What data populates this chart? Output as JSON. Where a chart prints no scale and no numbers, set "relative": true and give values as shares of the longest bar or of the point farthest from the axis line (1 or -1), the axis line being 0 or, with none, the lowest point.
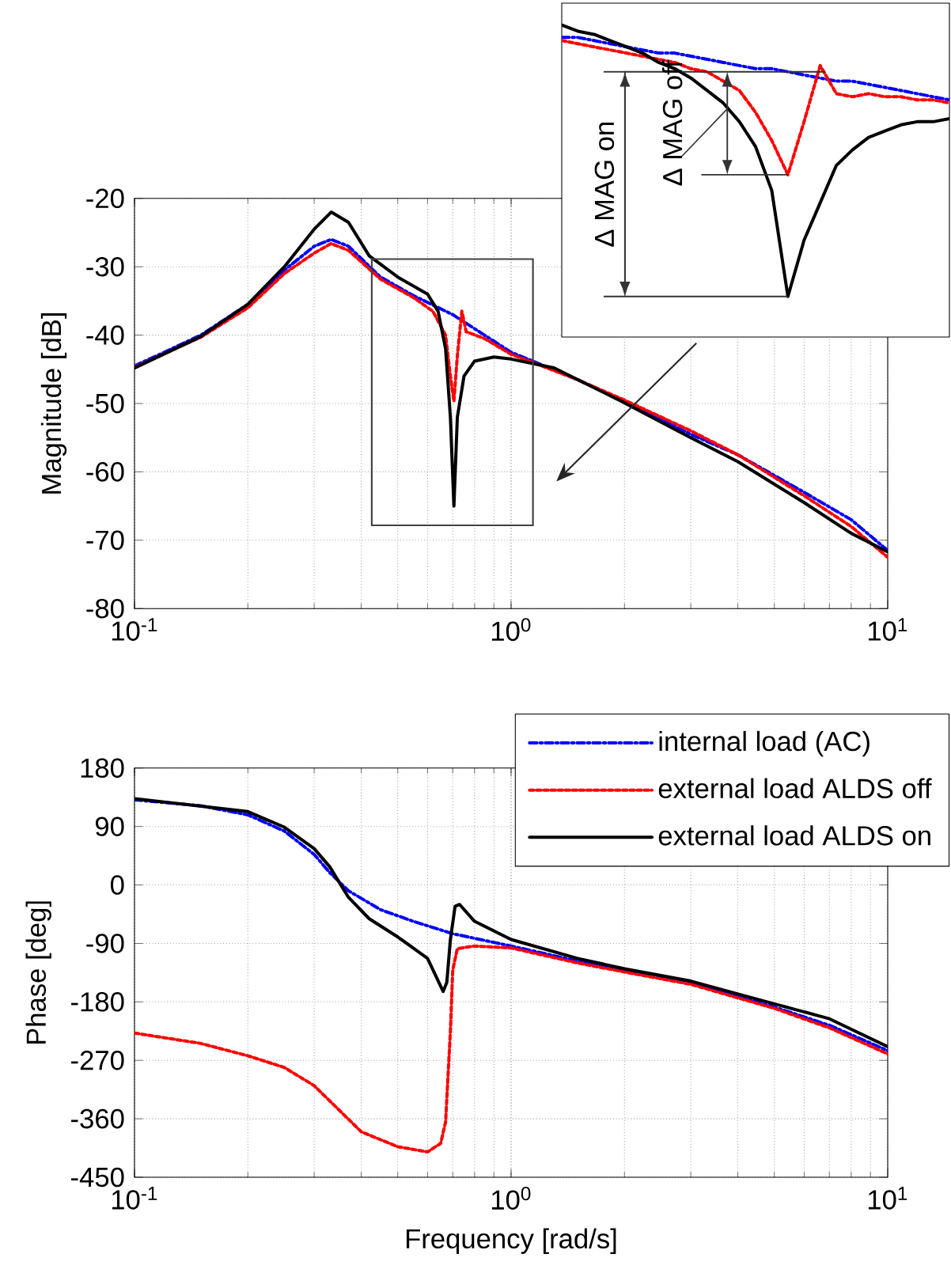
{
  "chart_data": [
    {
      "type": "line",
      "ylabel": "Magnitude [dB]",
      "xlim": [
        0.1,
        10
      ],
      "ylim": [
        -80,
        -20
      ],
      "log": "x",
      "grid": true,
      "xticks": [
        {
          "value": 0.1,
          "label": "10$^{-1}$"
        },
        {
          "value": 1,
          "label": "10$^{0}$"
        },
        {
          "value": 10,
          "label": "10$^{1}$"
        }
      ],
      "yticks": [
        -80,
        -70,
        -60,
        -50,
        -40,
        -30,
        -20
      ],
      "series": [
        {
          "color": "#0000ff",
          "line_style": "dashdot",
          "x": [
            0.1,
            0.12,
            0.15,
            0.2,
            0.25,
            0.3,
            0.333,
            0.37,
            0.45,
            0.55,
            0.7,
            0.85,
            1,
            1.5,
            2,
            3,
            4,
            6,
            8,
            10
          ],
          "values": [
            -44.5,
            -42.5,
            -40,
            -35.5,
            -30.5,
            -27,
            -26,
            -27,
            -31.5,
            -34.2,
            -37,
            -40,
            -42.5,
            -46.5,
            -49.7,
            -54.5,
            -57.5,
            -63,
            -67,
            -71.5
          ]
        },
        {
          "color": "#ff0000",
          "line_style": "dotted",
          "x": [
            0.1,
            0.15,
            0.2,
            0.25,
            0.3,
            0.333,
            0.37,
            0.45,
            0.55,
            0.62,
            0.67,
            0.69,
            0.705,
            0.72,
            0.74,
            0.76,
            0.85,
            1,
            1.5,
            2,
            3,
            4,
            6,
            8,
            10
          ],
          "values": [
            -44.7,
            -40.3,
            -36,
            -31,
            -28,
            -26.6,
            -27.6,
            -31.8,
            -34.5,
            -36.5,
            -40,
            -46,
            -49.7,
            -43,
            -36.5,
            -39.5,
            -40.5,
            -42.8,
            -46.5,
            -49.5,
            -54,
            -57.5,
            -63.5,
            -68,
            -72.5
          ]
        },
        {
          "color": "#000000",
          "line_style": "solid",
          "x": [
            0.1,
            0.15,
            0.2,
            0.25,
            0.3,
            0.333,
            0.37,
            0.42,
            0.5,
            0.6,
            0.64,
            0.67,
            0.69,
            0.705,
            0.72,
            0.75,
            0.8,
            0.9,
            1,
            1.3,
            2,
            3,
            4,
            6,
            8,
            10
          ],
          "values": [
            -44.8,
            -40.2,
            -35.5,
            -30,
            -24.5,
            -22,
            -23.5,
            -28.4,
            -31.5,
            -34,
            -36.5,
            -42,
            -52,
            -65,
            -52,
            -46,
            -43.8,
            -43.2,
            -43.5,
            -44.8,
            -49.9,
            -55,
            -58.5,
            -64.5,
            -69,
            -71.7
          ]
        }
      ]
    },
    {
      "type": "line",
      "relative": true,
      "categories": [
        null,
        null,
        null,
        null,
        null,
        null,
        null,
        null,
        null,
        null,
        null,
        null,
        null,
        null,
        null,
        null,
        null,
        null,
        null,
        null,
        null,
        null,
        null,
        null,
        null
      ],
      "annotations": [
        "Δ MAG on",
        "Δ MAG off"
      ],
      "series": [
        {
          "color": "#0000ff",
          "line_style": "dashdot",
          "values": [
            0.96,
            0.96,
            0.95,
            0.94,
            0.93,
            0.92,
            0.91,
            0.91,
            0.9,
            0.89,
            0.88,
            0.87,
            0.86,
            0.86,
            0.85,
            0.84,
            0.83,
            0.82,
            0.82,
            0.81,
            0.8,
            0.79,
            0.78,
            0.77,
            0.76
          ]
        },
        {
          "color": "#ff0000",
          "line_style": "dotted",
          "values": [
            0.95,
            0.94,
            0.93,
            0.92,
            0.91,
            0.9,
            0.89,
            0.88,
            0.86,
            0.85,
            0.82,
            0.79,
            0.72,
            0.63,
            0.52,
            0.69,
            0.87,
            0.78,
            0.77,
            0.78,
            0.77,
            0.77,
            0.76,
            0.76,
            0.75
          ]
        },
        {
          "color": "#000000",
          "line_style": "solid",
          "values": [
            1,
            0.98,
            0.97,
            0.95,
            0.93,
            0.91,
            0.88,
            0.86,
            0.83,
            0.79,
            0.75,
            0.69,
            0.61,
            0.47,
            0.13,
            0.31,
            0.43,
            0.55,
            0.6,
            0.64,
            0.66,
            0.68,
            0.69,
            0.69,
            0.7
          ]
        }
      ]
    },
    {
      "type": "line",
      "xlabel": "Frequency [rad/s]",
      "ylabel": "Phase [deg]",
      "xlim": [
        0.1,
        10
      ],
      "ylim": [
        -450,
        180
      ],
      "log": "x",
      "grid": true,
      "legend": "top right",
      "xticks": [
        {
          "value": 0.1,
          "label": "10$^{-1}$"
        },
        {
          "value": 1,
          "label": "10$^{0}$"
        },
        {
          "value": 10,
          "label": "10$^{1}$"
        }
      ],
      "yticks": [
        -450,
        -360,
        -270,
        -180,
        -90,
        0,
        90,
        180
      ],
      "series": [
        {
          "name": "internal load (AC)",
          "color": "#0000ff",
          "line_style": "dashdot",
          "x": [
            0.1,
            0.15,
            0.2,
            0.25,
            0.3,
            0.33,
            0.37,
            0.45,
            0.55,
            0.7,
            1,
            1.5,
            2,
            3,
            5,
            7,
            10
          ],
          "values": [
            131,
            122,
            108,
            83,
            47,
            19,
            -9,
            -38,
            -56,
            -75,
            -94,
            -117,
            -131,
            -150,
            -188,
            -216,
            -255
          ]
        },
        {
          "name": "external load ALDS off",
          "color": "#ff0000",
          "line_style": "dotted",
          "x": [
            0.1,
            0.15,
            0.2,
            0.25,
            0.3,
            0.35,
            0.4,
            0.5,
            0.6,
            0.65,
            0.67,
            0.69,
            0.7,
            0.72,
            0.8,
            1,
            1.5,
            2,
            3,
            5,
            7,
            10
          ],
          "values": [
            -228,
            -244,
            -263,
            -281,
            -309,
            -347,
            -380,
            -403,
            -411,
            -398,
            -365,
            -225,
            -131,
            -98,
            -94,
            -97,
            -120,
            -134,
            -153,
            -190,
            -220,
            -260
          ]
        },
        {
          "name": "external load ALDS on",
          "color": "#000000",
          "line_style": "solid",
          "x": [
            0.1,
            0.2,
            0.25,
            0.3,
            0.33,
            0.37,
            0.42,
            0.5,
            0.6,
            0.66,
            0.675,
            0.69,
            0.71,
            0.73,
            0.8,
            1,
            1.5,
            2,
            3,
            5,
            7,
            10
          ],
          "values": [
            133,
            113,
            89,
            56,
            28,
            -19,
            -52,
            -80,
            -113,
            -164,
            -150,
            -84,
            -33,
            -30,
            -56,
            -84,
            -113,
            -129,
            -148,
            -183,
            -206,
            -249
          ]
        }
      ]
    }
  ]
}
